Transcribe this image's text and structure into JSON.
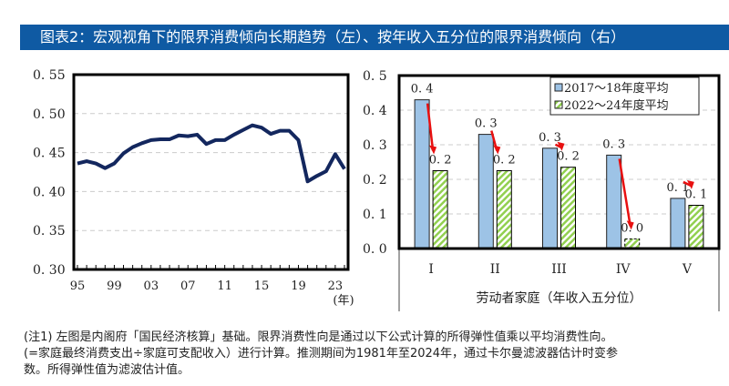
{
  "title": "图表2：宏观视角下的限界消费倾向长期趋势（左）、按年收入五分位的限界消费倾向（右）",
  "chart_data": [
    {
      "type": "line",
      "ylim": [
        0.3,
        0.55
      ],
      "yticks": [
        "0. 30",
        "0. 35",
        "0. 40",
        "0. 45",
        "0. 50",
        "0. 55"
      ],
      "xticks": [
        "95",
        "99",
        "03",
        "07",
        "11",
        "15",
        "19",
        "23"
      ],
      "xunit": "(年)",
      "grid": true,
      "x": [
        1995,
        1996,
        1997,
        1998,
        1999,
        2000,
        2001,
        2002,
        2003,
        2004,
        2005,
        2006,
        2007,
        2008,
        2009,
        2010,
        2011,
        2012,
        2013,
        2014,
        2015,
        2016,
        2017,
        2018,
        2019,
        2020,
        2021,
        2022,
        2023,
        2024
      ],
      "values": [
        0.436,
        0.439,
        0.436,
        0.43,
        0.436,
        0.449,
        0.457,
        0.462,
        0.466,
        0.467,
        0.467,
        0.472,
        0.471,
        0.473,
        0.461,
        0.466,
        0.466,
        0.473,
        0.479,
        0.485,
        0.482,
        0.474,
        0.478,
        0.478,
        0.466,
        0.413,
        0.42,
        0.426,
        0.448,
        0.429
      ],
      "color": "#13275e"
    },
    {
      "type": "bar",
      "ylim": [
        0,
        0.5
      ],
      "yticks": [
        "0. 0",
        "0. 1",
        "0. 2",
        "0. 3",
        "0. 4",
        "0. 5"
      ],
      "categories": [
        "I",
        "II",
        "III",
        "IV",
        "V"
      ],
      "xlabel": "劳动者家庭（年收入五分位）",
      "legend": "top-right",
      "grid": true,
      "series": [
        {
          "name": "2017～18年度平均",
          "values": [
            0.43,
            0.33,
            0.29,
            0.27,
            0.145
          ],
          "labels": [
            "0. 4",
            "0. 3",
            "0. 3",
            "0. 3",
            "0. 1"
          ],
          "color": "#9dc3e6"
        },
        {
          "name": "2022～24年度平均",
          "values": [
            0.225,
            0.225,
            0.235,
            0.028,
            0.125
          ],
          "labels": [
            "0. 2",
            "0. 2",
            "0. 2",
            "0. 0",
            "0. 1"
          ],
          "color": "#92d050"
        }
      ],
      "annotation_color": "#e81010"
    }
  ],
  "note": [
    "(注1) 左图是内阁府「国民经济核算」基础。限界消费性向是通过以下公式计算的所得弹性值乘以平均消费性向。",
    "(=家庭最终消费支出÷家庭可支配收入）进行计算。推测期间为1981年至2024年，通过卡尔曼滤波器估计时变参",
    "数。所得弹性值为滤波估计值。"
  ]
}
